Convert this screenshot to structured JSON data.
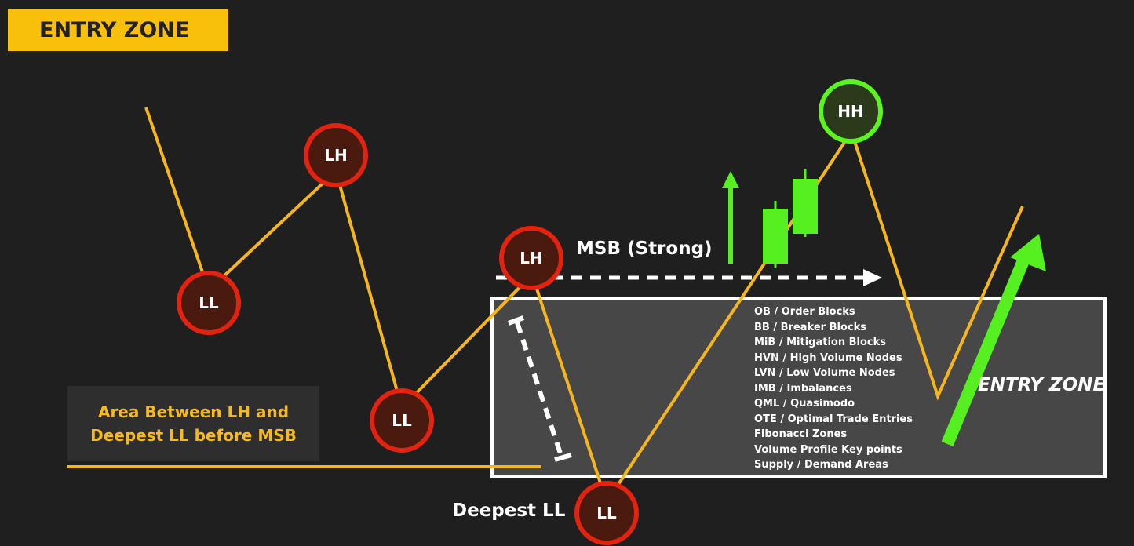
{
  "title": "ENTRY ZONE",
  "area_note": "Area Between LH and\nDeepest LL before MSB",
  "msb_label": "MSB (Strong)",
  "deepest_label": "Deepest LL",
  "entry_zone_label": "ENTRY ZONE",
  "entry_zone_items": [
    "OB / Order Blocks",
    "BB / Breaker Blocks",
    "MiB / Mitigation Blocks",
    "HVN / High Volume Nodes",
    "LVN / Low Volume Nodes",
    "IMB / Imbalances",
    "QML / Quasimodo",
    "OTE / Optimal Trade Entries",
    "Fibonacci Zones",
    "Volume Profile Key points",
    "Supply / Demand Areas"
  ],
  "swing_points": [
    {
      "label": "LL"
    },
    {
      "label": "LH"
    },
    {
      "label": "LL"
    },
    {
      "label": "LH"
    },
    {
      "label": "LL"
    },
    {
      "label": "HH"
    }
  ],
  "colors": {
    "background": "#1f1f1f",
    "title_bg": "#f9c00b",
    "price_line": "#f5b51d",
    "bearish_ring": "#e2230f",
    "bearish_fill": "#4a1a0e",
    "bullish_ring": "#5cf41e",
    "bullish_fill": "#2b3a1a",
    "entry_box": "#ffffff",
    "arrow_green": "#56f021"
  }
}
